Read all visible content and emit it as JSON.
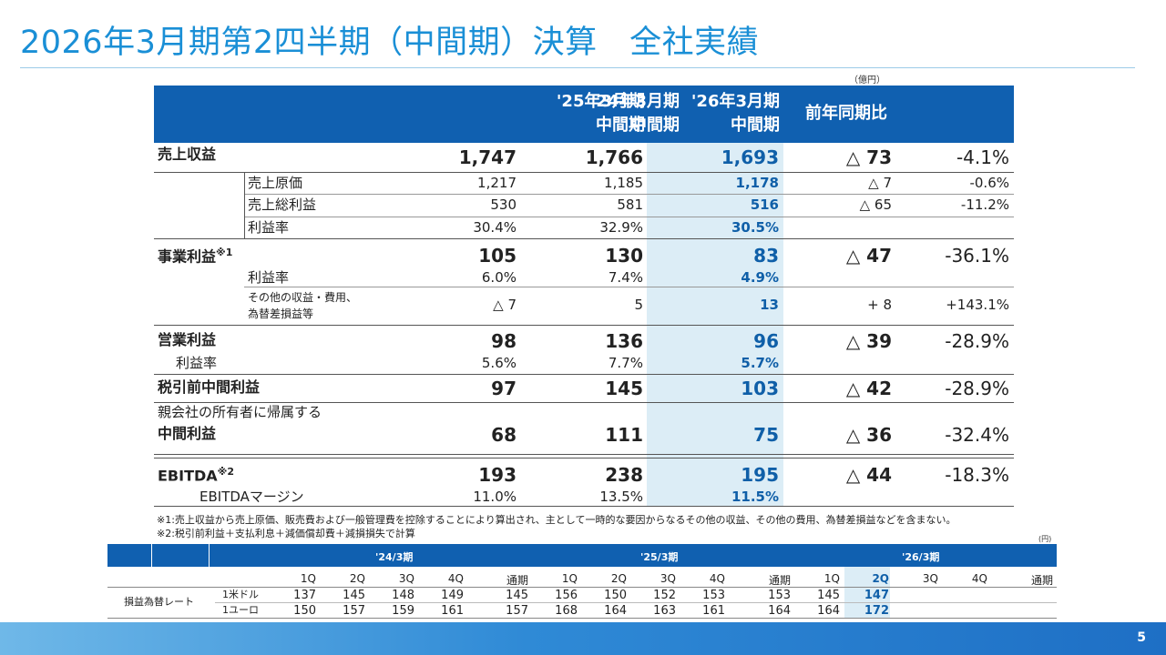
{
  "title": "2026年3月期第2四半期（中間期）決算　全社実績",
  "unit_main": "（億円）",
  "unit_fx": "(円)",
  "headers": {
    "col1": [
      "'24年3月期",
      "中間期"
    ],
    "col2": [
      "'25年3月期",
      "中間期"
    ],
    "col3": [
      "'26年3月期",
      "中間期"
    ],
    "col4": "前年同期比"
  },
  "rows": {
    "sales": {
      "label": "売上収益",
      "v1": "1,747",
      "v2": "1,766",
      "v3": "1,693",
      "diff": "△ 73",
      "pct": "-4.1%"
    },
    "cogs": {
      "label": "売上原価",
      "v1": "1,217",
      "v2": "1,185",
      "v3": "1,178",
      "diff": "△ 7",
      "pct": "-0.6%"
    },
    "gross": {
      "label": "売上総利益",
      "v1": "530",
      "v2": "581",
      "v3": "516",
      "diff": "△ 65",
      "pct": "-11.2%"
    },
    "gross_margin": {
      "label": "利益率",
      "v1": "30.4%",
      "v2": "32.9%",
      "v3": "30.5%"
    },
    "biz": {
      "label": "事業利益",
      "sup": "※1",
      "v1": "105",
      "v2": "130",
      "v3": "83",
      "diff": "△ 47",
      "pct": "-36.1%"
    },
    "biz_margin": {
      "label": "利益率",
      "v1": "6.0%",
      "v2": "7.4%",
      "v3": "4.9%"
    },
    "other": {
      "label1": "その他の収益・費用、",
      "label2": "為替差損益等",
      "v1": "△ 7",
      "v2": "5",
      "v3": "13",
      "diff": "+ 8",
      "pct": "+143.1%"
    },
    "op": {
      "label": "営業利益",
      "v1": "98",
      "v2": "136",
      "v3": "96",
      "diff": "△ 39",
      "pct": "-28.9%"
    },
    "op_margin": {
      "label": "利益率",
      "v1": "5.6%",
      "v2": "7.7%",
      "v3": "5.7%"
    },
    "pretax": {
      "label": "税引前中間利益",
      "v1": "97",
      "v2": "145",
      "v3": "103",
      "diff": "△ 42",
      "pct": "-28.9%"
    },
    "net": {
      "label1": "親会社の所有者に帰属する",
      "label2": "中間利益",
      "v1": "68",
      "v2": "111",
      "v3": "75",
      "diff": "△ 36",
      "pct": "-32.4%"
    },
    "ebitda": {
      "label": "EBITDA",
      "sup": "※2",
      "v1": "193",
      "v2": "238",
      "v3": "195",
      "diff": "△ 44",
      "pct": "-18.3%"
    },
    "ebitda_margin": {
      "label": "EBITDAマージン",
      "v1": "11.0%",
      "v2": "13.5%",
      "v3": "11.5%"
    }
  },
  "notes": [
    "※1:売上収益から売上原価、販売費および一般管理費を控除することにより算出され、主として一時的な要因からなるその他の収益、その他の費用、為替差損益などを含まない。",
    "※2:税引前利益＋支払利息＋減価償却費＋減損損失で計算"
  ],
  "fx": {
    "years": [
      "'24/3期",
      "'25/3期",
      "'26/3期"
    ],
    "quarters": [
      "1Q",
      "2Q",
      "3Q",
      "4Q",
      "通期",
      "1Q",
      "2Q",
      "3Q",
      "4Q",
      "通期",
      "1Q",
      "2Q",
      "3Q",
      "4Q",
      "通期"
    ],
    "row_label": "損益為替レート",
    "usd_label": "1米ドル",
    "eur_label": "1ユーロ",
    "usd": [
      "137",
      "145",
      "148",
      "149",
      "145",
      "156",
      "150",
      "152",
      "153",
      "153",
      "145",
      "147",
      "",
      "",
      ""
    ],
    "eur": [
      "150",
      "157",
      "159",
      "161",
      "157",
      "168",
      "164",
      "163",
      "161",
      "164",
      "164",
      "172",
      "",
      "",
      ""
    ]
  },
  "page_number": "5"
}
